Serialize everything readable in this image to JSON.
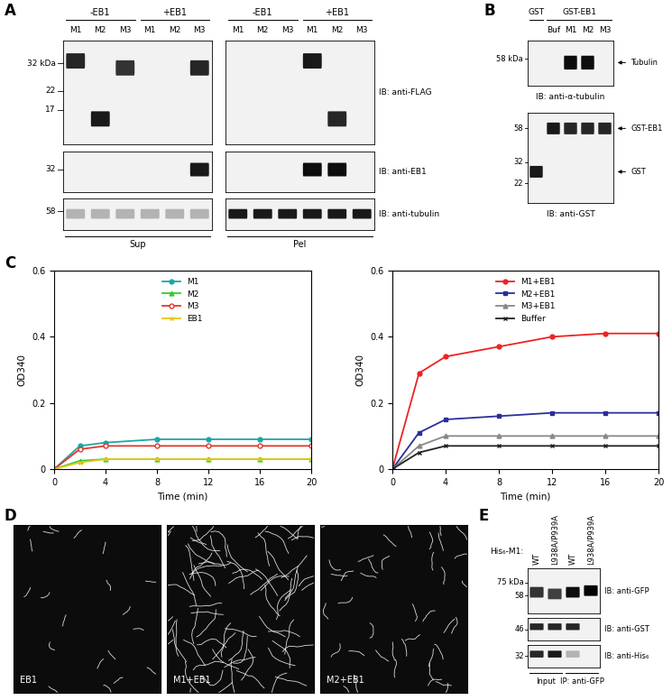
{
  "panel_labels": [
    "A",
    "B",
    "C",
    "D",
    "E"
  ],
  "chart_data": [
    {
      "type": "line",
      "x": [
        0,
        2,
        4,
        8,
        12,
        16,
        20
      ],
      "xlabel": "Time (min)",
      "ylabel": "OD340",
      "xlim": [
        0,
        20
      ],
      "xticks": [
        0,
        4,
        8,
        12,
        16,
        20
      ],
      "ylim": [
        0,
        0.6
      ],
      "yticks": [
        0,
        0.2,
        0.4,
        0.6
      ],
      "grid": false,
      "legend": "upper center",
      "series": [
        {
          "name": "M1",
          "color": "#1fa5a5",
          "marker": "circle",
          "values": [
            0,
            0.07,
            0.08,
            0.09,
            0.09,
            0.09,
            0.09
          ]
        },
        {
          "name": "M2",
          "color": "#33cc33",
          "marker": "triangle",
          "values": [
            0,
            0.025,
            0.03,
            0.03,
            0.03,
            0.03,
            0.03
          ]
        },
        {
          "name": "M3",
          "color": "#e0392b",
          "marker": "open circle",
          "values": [
            0,
            0.06,
            0.07,
            0.07,
            0.07,
            0.07,
            0.07
          ]
        },
        {
          "name": "EB1",
          "color": "#e8c61a",
          "marker": "x",
          "values": [
            0,
            0.02,
            0.03,
            0.03,
            0.03,
            0.03,
            0.03
          ]
        }
      ]
    },
    {
      "type": "line",
      "x": [
        0,
        2,
        4,
        8,
        12,
        16,
        20
      ],
      "xlabel": "Time (min)",
      "ylabel": "OD340",
      "xlim": [
        0,
        20
      ],
      "xticks": [
        0,
        4,
        8,
        12,
        16,
        20
      ],
      "ylim": [
        0,
        0.6
      ],
      "yticks": [
        0,
        0.2,
        0.4,
        0.6
      ],
      "grid": false,
      "legend": "upper center",
      "series": [
        {
          "name": "M1+EB1",
          "color": "#ee2222",
          "marker": "circle",
          "values": [
            0,
            0.29,
            0.34,
            0.37,
            0.4,
            0.41,
            0.41
          ]
        },
        {
          "name": "M2+EB1",
          "color": "#2a2f9a",
          "marker": "square",
          "values": [
            0,
            0.11,
            0.15,
            0.16,
            0.17,
            0.17,
            0.17
          ]
        },
        {
          "name": "M3+EB1",
          "color": "#888888",
          "marker": "triangle",
          "values": [
            0,
            0.07,
            0.1,
            0.1,
            0.1,
            0.1,
            0.1
          ]
        },
        {
          "name": "Buffer",
          "color": "#222222",
          "marker": "x",
          "values": [
            0,
            0.05,
            0.07,
            0.07,
            0.07,
            0.07,
            0.07
          ]
        }
      ]
    }
  ],
  "A": {
    "groups": [
      "Sup",
      "Pel"
    ],
    "conditions": [
      "-EB1",
      "+EB1"
    ],
    "lanes": [
      "M1",
      "M2",
      "M3"
    ],
    "rows": [
      {
        "label": "IB: anti-FLAG",
        "markers": [
          {
            "value": 32,
            "label": "32 kDa"
          },
          {
            "value": 22,
            "label": "22"
          },
          {
            "value": 17,
            "label": "17"
          }
        ],
        "bands": [
          [
            [
              33,
              0.85
            ],
            [
              15,
              0.9
            ],
            [
              30,
              0.8
            ],
            null,
            null,
            [
              30,
              0.85
            ]
          ],
          [
            null,
            null,
            null,
            [
              33,
              0.9
            ],
            [
              15,
              0.85
            ],
            null
          ]
        ]
      },
      {
        "label": "IB: anti-EB1",
        "markers": [
          {
            "value": 32,
            "label": "32"
          }
        ],
        "bands": [
          [
            null,
            null,
            null,
            null,
            null,
            [
              32,
              0.9
            ]
          ],
          [
            null,
            null,
            null,
            [
              32,
              0.95
            ],
            [
              32,
              0.95
            ],
            null
          ]
        ]
      },
      {
        "label": "IB: anti-tubulin",
        "markers": [
          {
            "value": 58,
            "label": "58"
          }
        ],
        "bands": [
          [
            [
              55,
              0.3
            ],
            [
              55,
              0.3
            ],
            [
              55,
              0.3
            ],
            [
              55,
              0.3
            ],
            [
              55,
              0.3
            ],
            [
              55,
              0.3
            ]
          ],
          [
            [
              55,
              0.9
            ],
            [
              55,
              0.9
            ],
            [
              55,
              0.9
            ],
            [
              55,
              0.9
            ],
            [
              55,
              0.9
            ],
            [
              55,
              0.9
            ]
          ]
        ]
      }
    ]
  },
  "B": {
    "header": [
      {
        "label": "GST",
        "lanes": [
          0
        ]
      },
      {
        "label": "GST-EB1",
        "lanes": [
          1,
          2,
          3,
          4
        ]
      }
    ],
    "lanes": [
      null,
      "Buf",
      "M1",
      "M2",
      "M3"
    ],
    "rows": [
      {
        "label": "IB: anti-α-tubulin",
        "markers": [
          {
            "value": 58,
            "label": "58 kDa"
          }
        ],
        "bands": [
          null,
          null,
          [
            55,
            0.95
          ],
          [
            55,
            0.95
          ],
          null
        ],
        "arrows": [
          {
            "kda": 55,
            "label": "Tubulin"
          }
        ]
      },
      {
        "label": "IB: anti-GST",
        "markers": [
          {
            "value": 58,
            "label": "58"
          },
          {
            "value": 32,
            "label": "32"
          },
          {
            "value": 22,
            "label": "22"
          }
        ],
        "bands": [
          [
            27,
            0.9
          ],
          [
            58,
            0.9
          ],
          [
            58,
            0.85
          ],
          [
            58,
            0.85
          ],
          [
            58,
            0.85
          ]
        ],
        "arrows": [
          {
            "kda": 58,
            "label": "GST-EB1"
          },
          {
            "kda": 27,
            "label": "GST"
          }
        ]
      }
    ]
  },
  "D": {
    "images": [
      "EB1",
      "M1+EB1",
      "M2+EB1"
    ]
  },
  "E": {
    "title": "His₆-M1:",
    "lanes": [
      "WT",
      "L938A/P939A",
      "WT",
      "L938A/P939A"
    ],
    "groups": [
      {
        "label": "Input",
        "lanes": [
          0,
          1
        ]
      },
      {
        "label": "IP: anti-GFP",
        "lanes": [
          2,
          3
        ]
      }
    ],
    "rows": [
      {
        "label": "IB: anti-GFP",
        "markers": [
          {
            "value": 75,
            "label": "75 kDa"
          },
          {
            "value": 58,
            "label": "58"
          }
        ],
        "bands": [
          [
            62,
            0.8
          ],
          [
            60,
            0.75
          ],
          [
            62,
            0.95
          ],
          [
            64,
            0.98
          ]
        ]
      },
      {
        "label": "IB: anti-GST",
        "markers": [
          {
            "value": 46,
            "label": "46"
          }
        ],
        "bands": [
          [
            50,
            0.85
          ],
          [
            50,
            0.85
          ],
          [
            50,
            0.85
          ],
          null
        ]
      },
      {
        "label": "IB: anti-His₆",
        "markers": [
          {
            "value": 32,
            "label": "32"
          }
        ],
        "bands": [
          [
            34,
            0.85
          ],
          [
            34,
            0.9
          ],
          [
            34,
            0.3
          ],
          null
        ]
      }
    ]
  }
}
